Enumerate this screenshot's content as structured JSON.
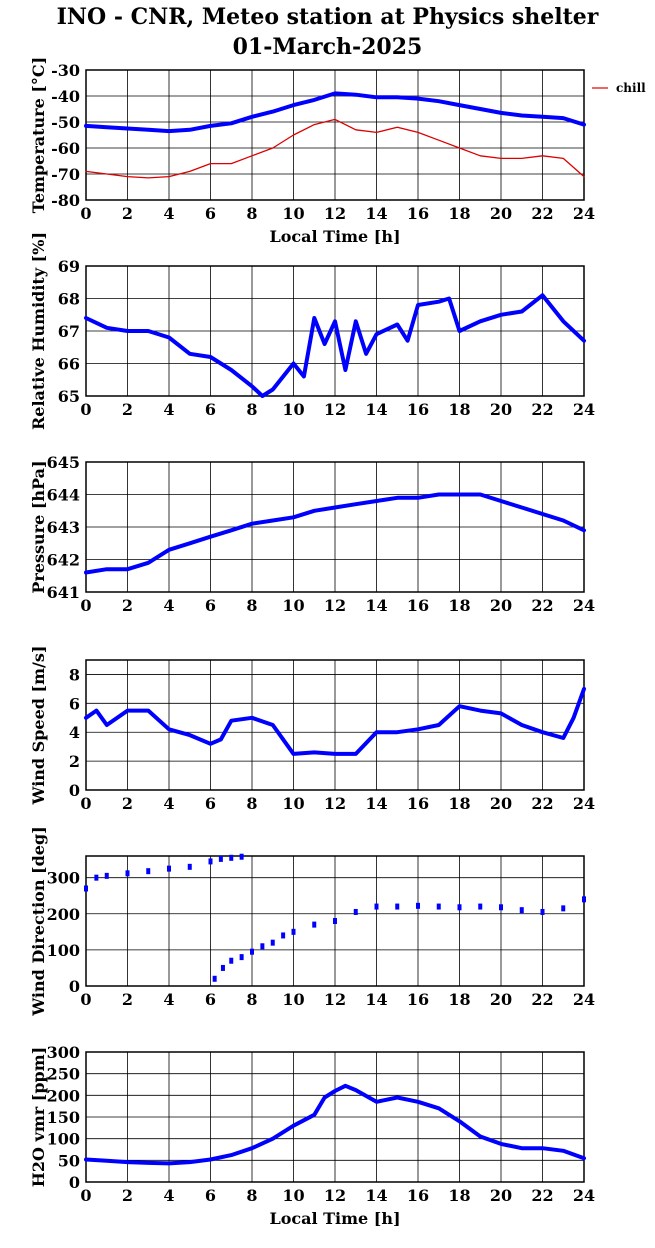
{
  "title": "INO - CNR, Meteo station at Physics shelter",
  "subtitle": "01-March-2025",
  "colors": {
    "blue": "#0000ff",
    "red": "#dd0000",
    "grid": "#000000"
  },
  "chart_data": [
    {
      "type": "line",
      "ylabel": "Temperature [°C]",
      "xlabel": "Local Time [h]",
      "xlim": [
        0,
        24
      ],
      "ylim": [
        -80,
        -30
      ],
      "xticks": [
        "0",
        "2",
        "4",
        "6",
        "8",
        "10",
        "12",
        "14",
        "16",
        "18",
        "20",
        "22",
        "24"
      ],
      "yticks": [
        "-80",
        "-70",
        "-60",
        "-50",
        "-40",
        "-30"
      ],
      "grid": true,
      "legend": {
        "placement": "right",
        "entries": [
          "chill"
        ]
      },
      "series": [
        {
          "color": "#0000ff",
          "x": [
            0,
            1,
            2,
            3,
            4,
            5,
            6,
            7,
            8,
            9,
            10,
            11,
            12,
            13,
            14,
            15,
            16,
            17,
            18,
            19,
            20,
            21,
            22,
            23,
            24
          ],
          "y": [
            -51.5,
            -52,
            -52.5,
            -53,
            -53.5,
            -53,
            -51.5,
            -50.5,
            -48,
            -46,
            -43.5,
            -41.5,
            -39,
            -39.5,
            -40.5,
            -40.5,
            -41,
            -42,
            -43.5,
            -45,
            -46.5,
            -47.5,
            -48,
            -48.5,
            -51
          ]
        },
        {
          "name": "chill",
          "color": "#dd0000",
          "x": [
            0,
            1,
            2,
            3,
            4,
            5,
            6,
            7,
            8,
            9,
            10,
            11,
            12,
            13,
            14,
            15,
            16,
            17,
            18,
            19,
            20,
            21,
            22,
            23,
            24
          ],
          "y": [
            -69,
            -70,
            -71,
            -71.5,
            -71,
            -69,
            -66,
            -66,
            -63,
            -60,
            -55,
            -51,
            -49,
            -53,
            -54,
            -52,
            -54,
            -57,
            -60,
            -63,
            -64,
            -64,
            -63,
            -64,
            -71
          ]
        }
      ]
    },
    {
      "type": "line",
      "ylabel": "Relative Humidity [%]",
      "xlim": [
        0,
        24
      ],
      "ylim": [
        65,
        69
      ],
      "xticks": [
        "0",
        "2",
        "4",
        "6",
        "8",
        "10",
        "12",
        "14",
        "16",
        "18",
        "20",
        "22",
        "24"
      ],
      "yticks": [
        "65",
        "66",
        "67",
        "68",
        "69"
      ],
      "grid": true,
      "series": [
        {
          "color": "#0000ff",
          "x": [
            0,
            1,
            2,
            3,
            4,
            5,
            6,
            7,
            8,
            8.5,
            9,
            10,
            10.5,
            11,
            11.5,
            12,
            12.5,
            13,
            13.5,
            14,
            15,
            15.5,
            16,
            17,
            17.5,
            18,
            19,
            20,
            21,
            22,
            23,
            24
          ],
          "y": [
            67.4,
            67.1,
            67.0,
            67.0,
            66.8,
            66.3,
            66.2,
            65.8,
            65.3,
            65.0,
            65.2,
            66.0,
            65.6,
            67.4,
            66.6,
            67.3,
            65.8,
            67.3,
            66.3,
            66.9,
            67.2,
            66.7,
            67.8,
            67.9,
            68.0,
            67.0,
            67.3,
            67.5,
            67.6,
            68.1,
            67.3,
            66.7
          ]
        }
      ]
    },
    {
      "type": "line",
      "ylabel": "Pressure [hPa]",
      "xlim": [
        0,
        24
      ],
      "ylim": [
        641,
        645
      ],
      "xticks": [
        "0",
        "2",
        "4",
        "6",
        "8",
        "10",
        "12",
        "14",
        "16",
        "18",
        "20",
        "22",
        "24"
      ],
      "yticks": [
        "641",
        "642",
        "643",
        "644",
        "645"
      ],
      "grid": true,
      "series": [
        {
          "color": "#0000ff",
          "x": [
            0,
            1,
            2,
            3,
            4,
            5,
            6,
            7,
            8,
            9,
            10,
            11,
            12,
            13,
            14,
            15,
            16,
            17,
            18,
            19,
            20,
            21,
            22,
            23,
            24
          ],
          "y": [
            641.6,
            641.7,
            641.7,
            641.9,
            642.3,
            642.5,
            642.7,
            642.9,
            643.1,
            643.2,
            643.3,
            643.5,
            643.6,
            643.7,
            643.8,
            643.9,
            643.9,
            644.0,
            644.0,
            644.0,
            643.8,
            643.6,
            643.4,
            643.2,
            642.9
          ]
        }
      ]
    },
    {
      "type": "line",
      "ylabel": "Wind Speed [m/s]",
      "xlim": [
        0,
        24
      ],
      "ylim": [
        0,
        9
      ],
      "xticks": [
        "0",
        "2",
        "4",
        "6",
        "8",
        "10",
        "12",
        "14",
        "16",
        "18",
        "20",
        "22",
        "24"
      ],
      "yticks": [
        "0",
        "2",
        "4",
        "6",
        "8"
      ],
      "grid": true,
      "series": [
        {
          "color": "#0000ff",
          "x": [
            0,
            0.5,
            1,
            2,
            3,
            4,
            5,
            6,
            6.5,
            7,
            8,
            9,
            10,
            11,
            12,
            13,
            14,
            15,
            16,
            17,
            18,
            19,
            20,
            21,
            22,
            23,
            23.5,
            24
          ],
          "y": [
            5.0,
            5.5,
            4.5,
            5.5,
            5.5,
            4.2,
            3.8,
            3.2,
            3.5,
            4.8,
            5.0,
            4.5,
            2.5,
            2.6,
            2.5,
            2.5,
            4.0,
            4.0,
            4.2,
            4.5,
            5.8,
            5.5,
            5.3,
            4.5,
            4.0,
            3.6,
            5.0,
            7.0
          ]
        }
      ]
    },
    {
      "type": "scatter",
      "ylabel": "Wind Direction [deg]",
      "xlim": [
        0,
        24
      ],
      "ylim": [
        0,
        360
      ],
      "xticks": [
        "0",
        "2",
        "4",
        "6",
        "8",
        "10",
        "12",
        "14",
        "16",
        "18",
        "20",
        "22",
        "24"
      ],
      "yticks": [
        "0",
        "100",
        "200",
        "300"
      ],
      "grid": true,
      "series": [
        {
          "color": "#0000ff",
          "x": [
            0,
            0.5,
            1,
            2,
            3,
            4,
            5,
            6,
            6.5,
            7,
            7.5,
            6.2,
            6.6,
            7,
            7.5,
            8,
            8.5,
            9,
            9.5,
            10,
            11,
            12,
            13,
            14,
            15,
            16,
            17,
            18,
            19,
            20,
            21,
            22,
            23,
            24
          ],
          "y": [
            270,
            300,
            305,
            312,
            318,
            325,
            330,
            345,
            352,
            355,
            358,
            20,
            50,
            70,
            80,
            95,
            110,
            120,
            140,
            150,
            170,
            180,
            205,
            220,
            220,
            222,
            220,
            218,
            220,
            218,
            210,
            205,
            215,
            240
          ]
        }
      ]
    },
    {
      "type": "line",
      "ylabel": "H2O vmr [ppm]",
      "xlabel": "Local Time [h]",
      "xlim": [
        0,
        24
      ],
      "ylim": [
        0,
        300
      ],
      "xticks": [
        "0",
        "2",
        "4",
        "6",
        "8",
        "10",
        "12",
        "14",
        "16",
        "18",
        "20",
        "22",
        "24"
      ],
      "yticks": [
        "0",
        "50",
        "100",
        "150",
        "200",
        "250",
        "300"
      ],
      "grid": true,
      "series": [
        {
          "color": "#0000ff",
          "x": [
            0,
            1,
            2,
            3,
            4,
            5,
            6,
            7,
            8,
            9,
            10,
            11,
            11.5,
            12,
            12.5,
            13,
            14,
            15,
            16,
            17,
            18,
            19,
            20,
            21,
            22,
            23,
            24
          ],
          "y": [
            52,
            49,
            46,
            44,
            43,
            46,
            52,
            62,
            78,
            100,
            130,
            155,
            195,
            210,
            222,
            212,
            185,
            195,
            185,
            170,
            140,
            105,
            88,
            78,
            78,
            72,
            55
          ]
        }
      ]
    }
  ]
}
